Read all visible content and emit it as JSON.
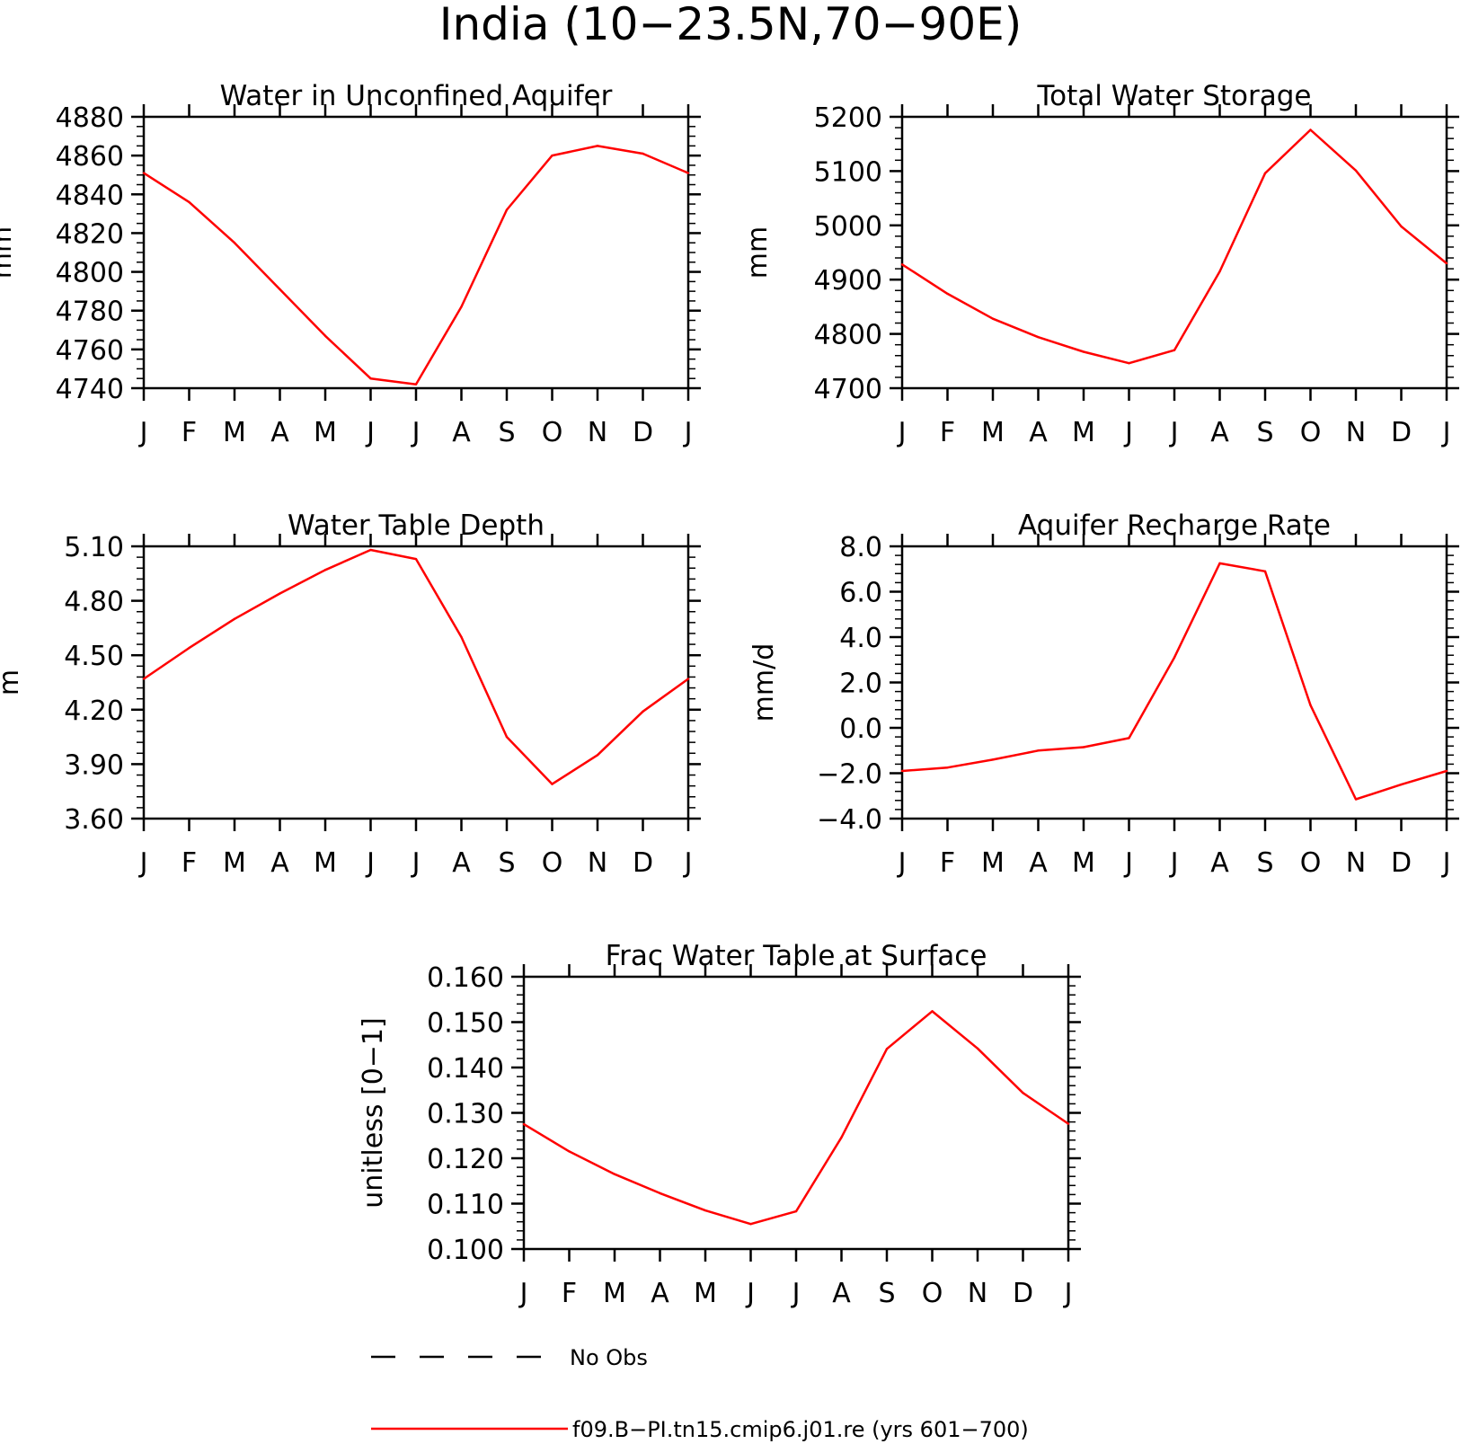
{
  "figure": {
    "title": "India (10−23.5N,70−90E)"
  },
  "legend": {
    "items": [
      {
        "label": "No Obs",
        "color": "#000000",
        "style": "dashed"
      },
      {
        "label": "f09.B−PI.tn15.cmip6.j01.re (yrs 601−700)",
        "color": "#ff0000",
        "style": "solid"
      }
    ]
  },
  "chart_data": [
    {
      "type": "line",
      "title": "Water in Unconfined Aquifer",
      "ylabel": "mm",
      "categories": [
        "J",
        "F",
        "M",
        "A",
        "M",
        "J",
        "J",
        "A",
        "S",
        "O",
        "N",
        "D",
        "J"
      ],
      "ylim": [
        4740,
        4880
      ],
      "yticks": [
        "4880",
        "4860",
        "4840",
        "4820",
        "4800",
        "4780",
        "4760",
        "4740"
      ],
      "yticks_values": [
        4880,
        4860,
        4840,
        4820,
        4800,
        4780,
        4760,
        4740
      ],
      "minor_tick_step": 5,
      "grid": false,
      "series": [
        {
          "color": "#ff0000",
          "values": [
            4851,
            4836,
            4815,
            4791,
            4767,
            4745,
            4742,
            4782,
            4832,
            4860,
            4865,
            4861,
            4851
          ]
        }
      ]
    },
    {
      "type": "line",
      "title": "Total Water Storage",
      "ylabel": "mm",
      "categories": [
        "J",
        "F",
        "M",
        "A",
        "M",
        "J",
        "J",
        "A",
        "S",
        "O",
        "N",
        "D",
        "J"
      ],
      "ylim": [
        4700,
        5200
      ],
      "yticks": [
        "5200",
        "5100",
        "5000",
        "4900",
        "4800",
        "4700"
      ],
      "yticks_values": [
        5200,
        5100,
        5000,
        4900,
        4800,
        4700
      ],
      "minor_tick_step": 20,
      "grid": false,
      "series": [
        {
          "color": "#ff0000",
          "values": [
            4928,
            4874,
            4828,
            4794,
            4767,
            4746,
            4770,
            4915,
            5096,
            5176,
            5101,
            4998,
            4930
          ]
        }
      ]
    },
    {
      "type": "line",
      "title": "Water Table Depth",
      "ylabel": "m",
      "categories": [
        "J",
        "F",
        "M",
        "A",
        "M",
        "J",
        "J",
        "A",
        "S",
        "O",
        "N",
        "D",
        "J"
      ],
      "ylim": [
        3.6,
        5.1
      ],
      "yticks": [
        "5.10",
        "4.80",
        "4.50",
        "4.20",
        "3.90",
        "3.60"
      ],
      "yticks_values": [
        5.1,
        4.8,
        4.5,
        4.2,
        3.9,
        3.6
      ],
      "minor_tick_step": 0.06,
      "grid": false,
      "series": [
        {
          "color": "#ff0000",
          "values": [
            4.37,
            4.54,
            4.7,
            4.84,
            4.97,
            5.08,
            5.03,
            4.6,
            4.05,
            3.79,
            3.95,
            4.19,
            4.37
          ]
        }
      ]
    },
    {
      "type": "line",
      "title": "Aquifer Recharge Rate",
      "ylabel": "mm/d",
      "categories": [
        "J",
        "F",
        "M",
        "A",
        "M",
        "J",
        "J",
        "A",
        "S",
        "O",
        "N",
        "D",
        "J"
      ],
      "ylim": [
        -4,
        8
      ],
      "yticks": [
        "8.0",
        "6.0",
        "4.0",
        "2.0",
        "0.0",
        "−2.0",
        "−4.0"
      ],
      "yticks_values": [
        8,
        6,
        4,
        2,
        0,
        -2,
        -4
      ],
      "minor_tick_step": 0.4,
      "grid": false,
      "series": [
        {
          "color": "#ff0000",
          "values": [
            -1.9,
            -1.75,
            -1.4,
            -1.0,
            -0.85,
            -0.45,
            3.1,
            7.25,
            6.9,
            1.0,
            -3.15,
            -2.5,
            -1.9
          ]
        }
      ]
    },
    {
      "type": "line",
      "title": "Frac Water Table at Surface",
      "ylabel": "unitless [0−1]",
      "categories": [
        "J",
        "F",
        "M",
        "A",
        "M",
        "J",
        "J",
        "A",
        "S",
        "O",
        "N",
        "D",
        "J"
      ],
      "ylim": [
        0.1,
        0.16
      ],
      "yticks": [
        "0.160",
        "0.150",
        "0.140",
        "0.130",
        "0.120",
        "0.110",
        "0.100"
      ],
      "yticks_values": [
        0.16,
        0.15,
        0.14,
        0.13,
        0.12,
        0.11,
        0.1
      ],
      "minor_tick_step": 0.002,
      "grid": false,
      "series": [
        {
          "color": "#ff0000",
          "values": [
            0.1275,
            0.1215,
            0.1165,
            0.1123,
            0.1085,
            0.1055,
            0.1083,
            0.1246,
            0.1441,
            0.1524,
            0.1442,
            0.1344,
            0.1276
          ]
        }
      ]
    }
  ]
}
